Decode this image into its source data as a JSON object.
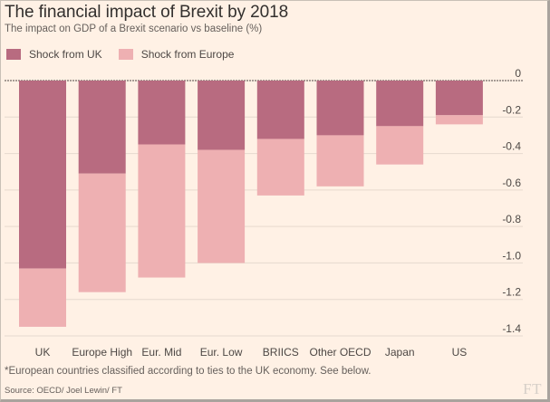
{
  "header": {
    "title": "The financial impact of Brexit by 2018",
    "subtitle": "The impact on GDP of a Brexit scenario vs baseline (%)"
  },
  "legend": {
    "items": [
      {
        "label": "Shock from UK",
        "color": "#b86b80"
      },
      {
        "label": "Shock from Europe",
        "color": "#eeb0b2"
      }
    ]
  },
  "chart_data": {
    "type": "bar",
    "stacked": true,
    "categories": [
      "UK",
      "Europe High",
      "Eur. Mid",
      "Eur. Low",
      "BRIICS",
      "Other OECD",
      "Japan",
      "US"
    ],
    "series": [
      {
        "name": "Shock from UK",
        "color": "#b86b80",
        "values": [
          -1.03,
          -0.51,
          -0.35,
          -0.38,
          -0.32,
          -0.3,
          -0.25,
          -0.19
        ]
      },
      {
        "name": "Shock from Europe",
        "color": "#eeb0b2",
        "values": [
          -0.32,
          -0.65,
          -0.73,
          -0.62,
          -0.31,
          -0.28,
          -0.21,
          -0.05
        ]
      }
    ],
    "ylim": [
      -1.4,
      0
    ],
    "yticks": [
      0,
      -0.2,
      -0.4,
      -0.6,
      -0.8,
      -1.0,
      -1.2,
      -1.4
    ],
    "ytick_labels": [
      "0",
      "-0.2",
      "-0.4",
      "-0.6",
      "-0.8",
      "-1.0",
      "-1.2",
      "-1.4"
    ],
    "grid": true,
    "legend_position": "top-left",
    "xlabel": "",
    "ylabel": ""
  },
  "footnote": "*European countries classified according to ties to the UK economy. See below.",
  "source": "Source: OECD/ Joel Lewin/ FT",
  "logo_text": "FT"
}
